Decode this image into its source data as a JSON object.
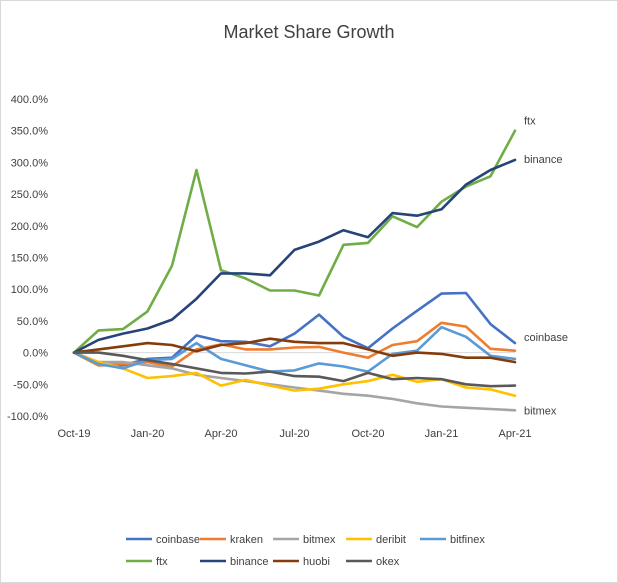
{
  "chart_data": {
    "type": "line",
    "title": "Market Share Growth",
    "xlabel": "",
    "ylabel": "",
    "ylim": [
      -100,
      400
    ],
    "y_ticks": [
      400,
      350,
      300,
      250,
      200,
      150,
      100,
      50,
      0,
      -50,
      -100
    ],
    "y_tick_labels": [
      "400.0%",
      "350.0%",
      "300.0%",
      "250.0%",
      "200.0%",
      "150.0%",
      "100.0%",
      "50.0%",
      "0.0%",
      "-50.0%",
      "-100.0%"
    ],
    "categories": [
      "Oct-19",
      "Nov-19",
      "Dec-19",
      "Jan-20",
      "Feb-20",
      "Mar-20",
      "Apr-20",
      "May-20",
      "Jun-20",
      "Jul-20",
      "Aug-20",
      "Sep-20",
      "Oct-20",
      "Nov-20",
      "Dec-20",
      "Jan-21",
      "Feb-21",
      "Mar-21",
      "Apr-21"
    ],
    "x_tick_labels": [
      {
        "index": 0,
        "label": "Oct-19"
      },
      {
        "index": 3,
        "label": "Jan-20"
      },
      {
        "index": 6,
        "label": "Apr-20"
      },
      {
        "index": 9,
        "label": "Jul-20"
      },
      {
        "index": 12,
        "label": "Oct-20"
      },
      {
        "index": 15,
        "label": "Jan-21"
      },
      {
        "index": 18,
        "label": "Apr-21"
      }
    ],
    "series": [
      {
        "name": "coinbase",
        "color": "#4472c4",
        "values": [
          0,
          -20,
          -20,
          -10,
          -8,
          27,
          18,
          17,
          10,
          30,
          60,
          25,
          7,
          38,
          66,
          93,
          94,
          45,
          15
        ]
      },
      {
        "name": "kraken",
        "color": "#ed7d31",
        "values": [
          0,
          -20,
          -18,
          -15,
          -22,
          5,
          13,
          5,
          5,
          8,
          9,
          0,
          -8,
          12,
          18,
          47,
          41,
          6,
          3
        ]
      },
      {
        "name": "bitmex",
        "color": "#a5a5a5",
        "values": [
          0,
          -15,
          -15,
          -20,
          -25,
          -35,
          -40,
          -45,
          -50,
          -55,
          -60,
          -65,
          -68,
          -73,
          -80,
          -85,
          -87,
          -89,
          -91
        ]
      },
      {
        "name": "deribit",
        "color": "#ffc000",
        "values": [
          0,
          -15,
          -25,
          -40,
          -37,
          -32,
          -52,
          -43,
          -52,
          -60,
          -57,
          -50,
          -45,
          -35,
          -46,
          -42,
          -55,
          -58,
          -68
        ]
      },
      {
        "name": "bitfinex",
        "color": "#5b9bd5",
        "values": [
          0,
          -18,
          -25,
          -12,
          -10,
          15,
          -10,
          -20,
          -30,
          -28,
          -17,
          -22,
          -30,
          -2,
          3,
          40,
          25,
          -5,
          -10
        ]
      },
      {
        "name": "ftx",
        "color": "#70ad47",
        "values": [
          0,
          35,
          37,
          65,
          137,
          288,
          130,
          117,
          98,
          98,
          90,
          170,
          173,
          215,
          198,
          238,
          262,
          278,
          350
        ]
      },
      {
        "name": "binance",
        "color": "#264478",
        "values": [
          0,
          20,
          30,
          38,
          52,
          85,
          125,
          125,
          122,
          162,
          175,
          193,
          182,
          220,
          216,
          226,
          265,
          288,
          304
        ]
      },
      {
        "name": "huobi",
        "color": "#843c0c",
        "values": [
          0,
          5,
          10,
          15,
          12,
          2,
          12,
          15,
          22,
          17,
          15,
          15,
          5,
          -5,
          0,
          -2,
          -8,
          -8,
          -15
        ]
      },
      {
        "name": "okex",
        "color": "#595959",
        "values": [
          0,
          0,
          -5,
          -12,
          -18,
          -25,
          -32,
          -33,
          -30,
          -37,
          -38,
          -45,
          -32,
          -42,
          -40,
          -42,
          -50,
          -53,
          -52
        ]
      }
    ],
    "annotations": [
      "ftx",
      "binance",
      "coinbase",
      "bitmex"
    ],
    "grid": false,
    "legend_position": "bottom"
  }
}
